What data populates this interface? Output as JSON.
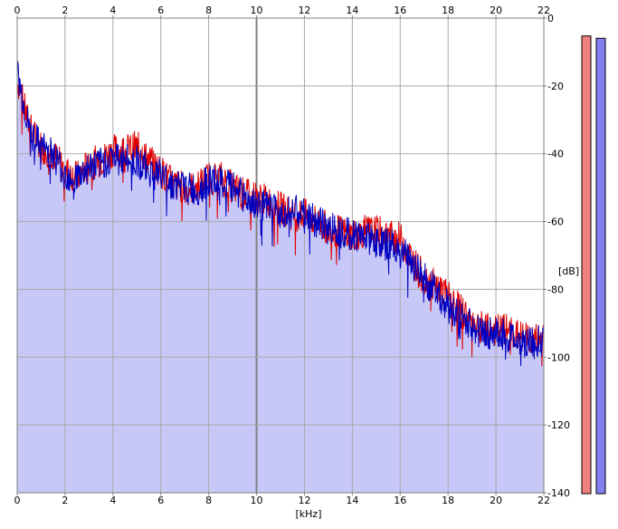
{
  "chart_data": {
    "type": "area",
    "xlabel": "[kHz]",
    "ylabel": "[dB]",
    "xlim": [
      0,
      22
    ],
    "ylim": [
      -140,
      0
    ],
    "x_ticks": [
      "0",
      "2",
      "4",
      "6",
      "8",
      "10",
      "12",
      "14",
      "16",
      "18",
      "20",
      "22"
    ],
    "y_ticks": [
      "0",
      "-20",
      "-40",
      "-60",
      "-80",
      "-100",
      "-120",
      "-140"
    ],
    "grid": true,
    "x_axis_position": "top-and-bottom",
    "y_axis_position": "right",
    "series": [
      {
        "color": "#e00000",
        "x": [
          0,
          0.5,
          1,
          1.5,
          2,
          2.5,
          3,
          3.5,
          4,
          4.5,
          5,
          5.5,
          6,
          6.5,
          7,
          7.5,
          8,
          8.5,
          9,
          9.5,
          10,
          10.5,
          11,
          11.5,
          12,
          12.5,
          13,
          13.5,
          14,
          14.5,
          15,
          15.5,
          16,
          16.5,
          17,
          17.5,
          18,
          18.5,
          19,
          19.5,
          20,
          20.5,
          21,
          21.5,
          22
        ],
        "y": [
          -18,
          -32,
          -38,
          -40,
          -45,
          -47,
          -43,
          -42,
          -39,
          -39,
          -38,
          -42,
          -45,
          -49,
          -50,
          -50,
          -47,
          -47,
          -50,
          -52,
          -53,
          -54,
          -56,
          -58,
          -58,
          -60,
          -62,
          -63,
          -64,
          -63,
          -63,
          -64,
          -65,
          -71,
          -77,
          -79,
          -82,
          -86,
          -89,
          -92,
          -92,
          -92,
          -94,
          -95,
          -94
        ]
      },
      {
        "color": "#0000c0",
        "x": [
          0,
          0.5,
          1,
          1.5,
          2,
          2.5,
          3,
          3.5,
          4,
          4.5,
          5,
          5.5,
          6,
          6.5,
          7,
          7.5,
          8,
          8.5,
          9,
          9.5,
          10,
          10.5,
          11,
          11.5,
          12,
          12.5,
          13,
          13.5,
          14,
          14.5,
          15,
          15.5,
          16,
          16.5,
          17,
          17.5,
          18,
          18.5,
          19,
          19.5,
          20,
          20.5,
          21,
          21.5,
          22
        ],
        "y": [
          -16,
          -33,
          -38,
          -40,
          -46,
          -47,
          -44,
          -43,
          -41,
          -42,
          -42,
          -45,
          -46,
          -49,
          -50,
          -51,
          -48,
          -49,
          -50,
          -53,
          -55,
          -56,
          -57,
          -57,
          -58,
          -60,
          -62,
          -62,
          -64,
          -64,
          -66,
          -67,
          -68,
          -72,
          -77,
          -80,
          -85,
          -88,
          -91,
          -93,
          -93,
          -94,
          -95,
          -96,
          -95
        ]
      }
    ],
    "fill_color": "#c8c8f8"
  },
  "meters": [
    {
      "color": "#f08080",
      "level": 0.985
    },
    {
      "color": "#8080f0",
      "level": 0.98
    }
  ]
}
